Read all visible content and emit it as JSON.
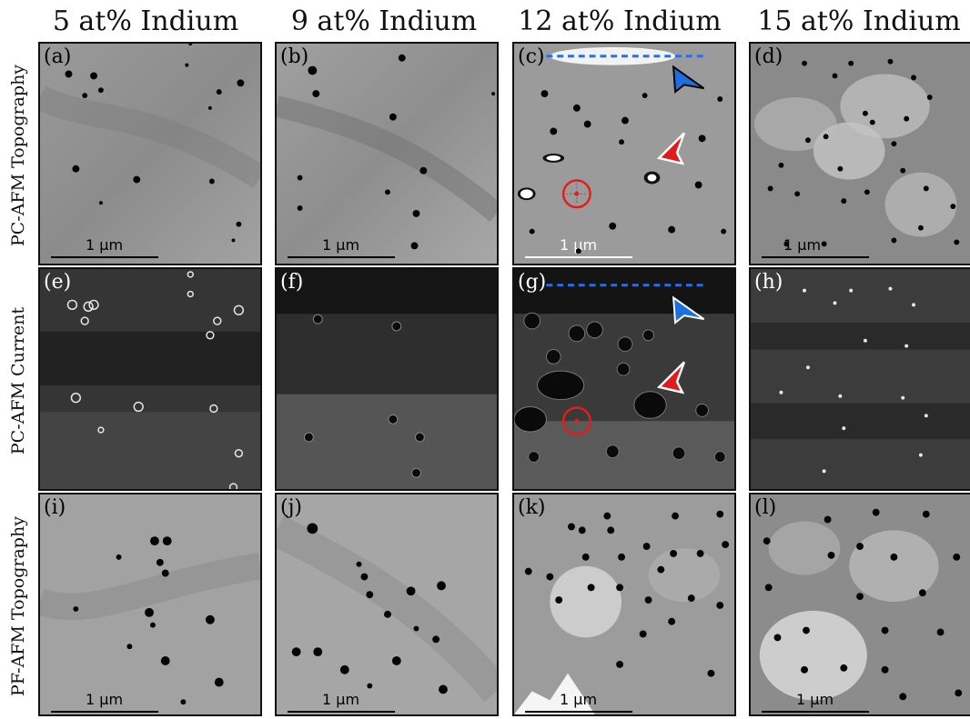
{
  "columns": [
    {
      "label": "5 at% Indium"
    },
    {
      "label": "9 at% Indium"
    },
    {
      "label": "12 at% Indium"
    },
    {
      "label": "15 at% Indium"
    }
  ],
  "rows": [
    {
      "label": "PC-AFM Topography"
    },
    {
      "label": "PC-AFM Current"
    },
    {
      "label": "PF-AFM Topography"
    }
  ],
  "panels": [
    {
      "label": "(a)",
      "scale": "1 μm"
    },
    {
      "label": "(b)",
      "scale": "1 μm"
    },
    {
      "label": "(c)",
      "scale": "1 μm"
    },
    {
      "label": "(d)",
      "scale": "1 μm"
    },
    {
      "label": "(e)",
      "scale": ""
    },
    {
      "label": "(f)",
      "scale": ""
    },
    {
      "label": "(g)",
      "scale": ""
    },
    {
      "label": "(h)",
      "scale": ""
    },
    {
      "label": "(i)",
      "scale": "1 μm"
    },
    {
      "label": "(j)",
      "scale": "1 μm"
    },
    {
      "label": "(k)",
      "scale": "1 μm"
    },
    {
      "label": "(l)",
      "scale": "1 μm"
    }
  ],
  "colors": {
    "marker_red": "#e11a1a",
    "marker_blue": "#1e6fe0",
    "dashed_line": "#2a6fe8",
    "circle_red": "#e41c1c"
  }
}
